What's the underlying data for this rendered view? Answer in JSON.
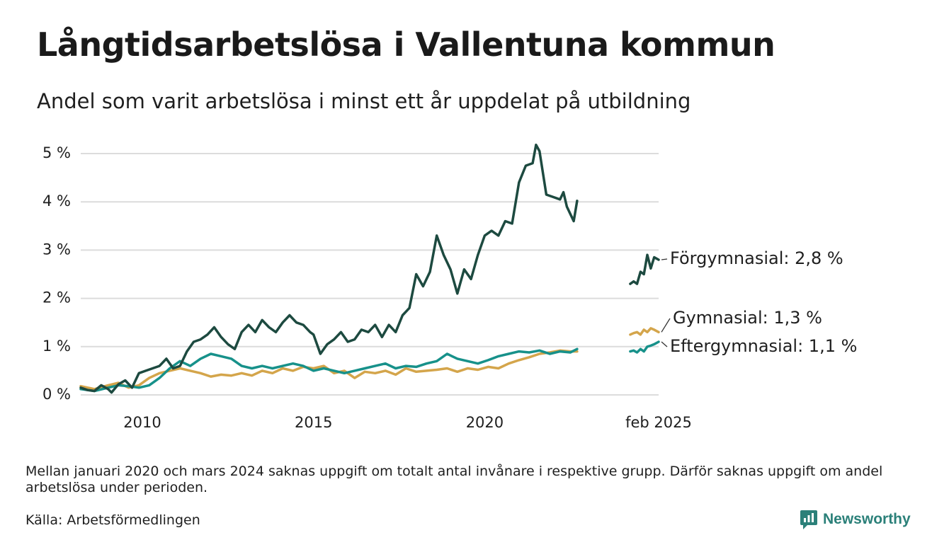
{
  "title": "Långtidsarbetslösa i Vallentuna kommun",
  "subtitle": "Andel som varit arbetslösa i minst ett år uppdelat på utbildning",
  "note": "Mellan januari 2020 och mars 2024 saknas uppgift om totalt antal invånare i respektive grupp. Därför saknas uppgift om andel arbetslösa under perioden.",
  "source": "Källa: Arbetsförmedlingen",
  "brand": "Newsworthy",
  "chart_data": {
    "type": "line",
    "title": "Långtidsarbetslösa i Vallentuna kommun",
    "subtitle": "Andel som varit arbetslösa i minst ett år uppdelat på utbildning",
    "y_ticks": [
      "0 %",
      "1 %",
      "2 %",
      "3 %",
      "4 %",
      "5 %"
    ],
    "y_tick_values": [
      0,
      1,
      2,
      3,
      4,
      5
    ],
    "ylim": [
      0,
      5
    ],
    "x_ticks": [
      "2010",
      "2015",
      "2020",
      "feb 2025"
    ],
    "x_tick_values": [
      2010,
      2015,
      2020,
      2025.08
    ],
    "xlim": [
      2008.2,
      2025.08
    ],
    "grid": true,
    "legend": "direct labels at line ends (right)",
    "series": [
      {
        "name": "Förgymnasial",
        "label": "Förgymnasial: 2,8 %",
        "color": "#1d4a40",
        "segments": [
          [
            [
              2008.2,
              0.15
            ],
            [
              2008.4,
              0.1
            ],
            [
              2008.6,
              0.08
            ],
            [
              2008.8,
              0.2
            ],
            [
              2009.0,
              0.12
            ],
            [
              2009.1,
              0.05
            ],
            [
              2009.3,
              0.22
            ],
            [
              2009.5,
              0.3
            ],
            [
              2009.7,
              0.15
            ],
            [
              2009.9,
              0.45
            ],
            [
              2010.1,
              0.5
            ],
            [
              2010.3,
              0.55
            ],
            [
              2010.5,
              0.6
            ],
            [
              2010.7,
              0.75
            ],
            [
              2010.9,
              0.55
            ],
            [
              2011.1,
              0.6
            ],
            [
              2011.3,
              0.9
            ],
            [
              2011.5,
              1.1
            ],
            [
              2011.7,
              1.15
            ],
            [
              2011.9,
              1.25
            ],
            [
              2012.1,
              1.4
            ],
            [
              2012.3,
              1.2
            ],
            [
              2012.5,
              1.05
            ],
            [
              2012.7,
              0.95
            ],
            [
              2012.9,
              1.3
            ],
            [
              2013.1,
              1.45
            ],
            [
              2013.3,
              1.3
            ],
            [
              2013.5,
              1.55
            ],
            [
              2013.7,
              1.4
            ],
            [
              2013.9,
              1.3
            ],
            [
              2014.1,
              1.5
            ],
            [
              2014.3,
              1.65
            ],
            [
              2014.5,
              1.5
            ],
            [
              2014.7,
              1.45
            ],
            [
              2014.9,
              1.3
            ],
            [
              2015.0,
              1.25
            ],
            [
              2015.2,
              0.85
            ],
            [
              2015.4,
              1.05
            ],
            [
              2015.6,
              1.15
            ],
            [
              2015.8,
              1.3
            ],
            [
              2016.0,
              1.1
            ],
            [
              2016.2,
              1.15
            ],
            [
              2016.4,
              1.35
            ],
            [
              2016.6,
              1.3
            ],
            [
              2016.8,
              1.45
            ],
            [
              2017.0,
              1.2
            ],
            [
              2017.2,
              1.45
            ],
            [
              2017.4,
              1.3
            ],
            [
              2017.6,
              1.65
            ],
            [
              2017.8,
              1.8
            ],
            [
              2018.0,
              2.5
            ],
            [
              2018.2,
              2.25
            ],
            [
              2018.4,
              2.55
            ],
            [
              2018.6,
              3.3
            ],
            [
              2018.8,
              2.9
            ],
            [
              2019.0,
              2.6
            ],
            [
              2019.2,
              2.1
            ],
            [
              2019.4,
              2.6
            ],
            [
              2019.6,
              2.4
            ],
            [
              2019.8,
              2.9
            ],
            [
              2020.0,
              3.3
            ],
            [
              2020.2,
              3.4
            ],
            [
              2020.4,
              3.3
            ],
            [
              2020.6,
              3.6
            ],
            [
              2020.8,
              3.55
            ],
            [
              2021.0,
              4.4
            ],
            [
              2021.2,
              4.75
            ],
            [
              2021.4,
              4.8
            ],
            [
              2021.5,
              5.18
            ],
            [
              2021.6,
              5.05
            ],
            [
              2021.8,
              4.15
            ],
            [
              2022.0,
              4.1
            ],
            [
              2022.2,
              4.05
            ],
            [
              2022.3,
              4.2
            ],
            [
              2022.4,
              3.9
            ],
            [
              2022.6,
              3.6
            ],
            [
              2022.7,
              4.02
            ]
          ],
          [
            [
              2024.25,
              2.3
            ],
            [
              2024.35,
              2.35
            ],
            [
              2024.45,
              2.3
            ],
            [
              2024.55,
              2.55
            ],
            [
              2024.65,
              2.5
            ],
            [
              2024.75,
              2.9
            ],
            [
              2024.85,
              2.62
            ],
            [
              2024.95,
              2.85
            ],
            [
              2025.08,
              2.8
            ]
          ]
        ]
      },
      {
        "name": "Gymnasial",
        "label": "Gymnasial: 1,3 %",
        "color": "#d4a54b",
        "segments": [
          [
            [
              2008.2,
              0.18
            ],
            [
              2008.6,
              0.12
            ],
            [
              2009.0,
              0.2
            ],
            [
              2009.3,
              0.25
            ],
            [
              2009.6,
              0.15
            ],
            [
              2009.9,
              0.2
            ],
            [
              2010.2,
              0.35
            ],
            [
              2010.5,
              0.45
            ],
            [
              2010.8,
              0.5
            ],
            [
              2011.1,
              0.55
            ],
            [
              2011.4,
              0.5
            ],
            [
              2011.7,
              0.45
            ],
            [
              2012.0,
              0.38
            ],
            [
              2012.3,
              0.42
            ],
            [
              2012.6,
              0.4
            ],
            [
              2012.9,
              0.45
            ],
            [
              2013.2,
              0.4
            ],
            [
              2013.5,
              0.5
            ],
            [
              2013.8,
              0.45
            ],
            [
              2014.1,
              0.55
            ],
            [
              2014.4,
              0.5
            ],
            [
              2014.7,
              0.58
            ],
            [
              2015.0,
              0.55
            ],
            [
              2015.3,
              0.6
            ],
            [
              2015.6,
              0.45
            ],
            [
              2015.9,
              0.5
            ],
            [
              2016.2,
              0.35
            ],
            [
              2016.5,
              0.48
            ],
            [
              2016.8,
              0.45
            ],
            [
              2017.1,
              0.5
            ],
            [
              2017.4,
              0.42
            ],
            [
              2017.7,
              0.55
            ],
            [
              2018.0,
              0.48
            ],
            [
              2018.3,
              0.5
            ],
            [
              2018.6,
              0.52
            ],
            [
              2018.9,
              0.55
            ],
            [
              2019.2,
              0.48
            ],
            [
              2019.5,
              0.55
            ],
            [
              2019.8,
              0.52
            ],
            [
              2020.1,
              0.58
            ],
            [
              2020.4,
              0.55
            ],
            [
              2020.7,
              0.65
            ],
            [
              2021.0,
              0.72
            ],
            [
              2021.3,
              0.78
            ],
            [
              2021.6,
              0.85
            ],
            [
              2021.9,
              0.88
            ],
            [
              2022.2,
              0.92
            ],
            [
              2022.5,
              0.9
            ],
            [
              2022.7,
              0.9
            ]
          ],
          [
            [
              2024.25,
              1.25
            ],
            [
              2024.35,
              1.28
            ],
            [
              2024.45,
              1.3
            ],
            [
              2024.55,
              1.25
            ],
            [
              2024.65,
              1.35
            ],
            [
              2024.75,
              1.3
            ],
            [
              2024.85,
              1.38
            ],
            [
              2024.95,
              1.35
            ],
            [
              2025.08,
              1.3
            ]
          ]
        ]
      },
      {
        "name": "Eftergymnasial",
        "label": "Eftergymnasial: 1,1 %",
        "color": "#17918a",
        "segments": [
          [
            [
              2008.2,
              0.12
            ],
            [
              2008.6,
              0.08
            ],
            [
              2009.0,
              0.15
            ],
            [
              2009.3,
              0.2
            ],
            [
              2009.6,
              0.18
            ],
            [
              2009.9,
              0.15
            ],
            [
              2010.2,
              0.2
            ],
            [
              2010.5,
              0.35
            ],
            [
              2010.8,
              0.55
            ],
            [
              2011.1,
              0.7
            ],
            [
              2011.4,
              0.6
            ],
            [
              2011.7,
              0.75
            ],
            [
              2012.0,
              0.85
            ],
            [
              2012.3,
              0.8
            ],
            [
              2012.6,
              0.75
            ],
            [
              2012.9,
              0.6
            ],
            [
              2013.2,
              0.55
            ],
            [
              2013.5,
              0.6
            ],
            [
              2013.8,
              0.55
            ],
            [
              2014.1,
              0.6
            ],
            [
              2014.4,
              0.65
            ],
            [
              2014.7,
              0.6
            ],
            [
              2015.0,
              0.5
            ],
            [
              2015.3,
              0.55
            ],
            [
              2015.6,
              0.5
            ],
            [
              2015.9,
              0.45
            ],
            [
              2016.2,
              0.5
            ],
            [
              2016.5,
              0.55
            ],
            [
              2016.8,
              0.6
            ],
            [
              2017.1,
              0.65
            ],
            [
              2017.4,
              0.55
            ],
            [
              2017.7,
              0.6
            ],
            [
              2018.0,
              0.58
            ],
            [
              2018.3,
              0.65
            ],
            [
              2018.6,
              0.7
            ],
            [
              2018.9,
              0.85
            ],
            [
              2019.2,
              0.75
            ],
            [
              2019.5,
              0.7
            ],
            [
              2019.8,
              0.65
            ],
            [
              2020.1,
              0.72
            ],
            [
              2020.4,
              0.8
            ],
            [
              2020.7,
              0.85
            ],
            [
              2021.0,
              0.9
            ],
            [
              2021.3,
              0.88
            ],
            [
              2021.6,
              0.92
            ],
            [
              2021.9,
              0.85
            ],
            [
              2022.2,
              0.9
            ],
            [
              2022.5,
              0.88
            ],
            [
              2022.7,
              0.95
            ]
          ],
          [
            [
              2024.25,
              0.9
            ],
            [
              2024.35,
              0.92
            ],
            [
              2024.45,
              0.88
            ],
            [
              2024.55,
              0.95
            ],
            [
              2024.65,
              0.9
            ],
            [
              2024.75,
              1.0
            ],
            [
              2024.85,
              1.02
            ],
            [
              2024.95,
              1.05
            ],
            [
              2025.08,
              1.1
            ]
          ]
        ]
      }
    ]
  }
}
